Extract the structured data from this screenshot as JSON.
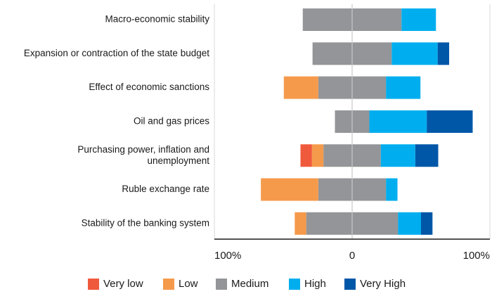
{
  "chart_data": {
    "type": "bar",
    "orientation": "horizontal",
    "stacked": "diverging",
    "categories": [
      "Macro-economic stability",
      "Expansion or contraction of the state budget",
      "Effect of economic sanctions",
      "Oil and gas prices",
      "Purchasing power, inflation and unemployment",
      "Ruble exchange rate",
      "Stability of the banking system"
    ],
    "category_lines": [
      [
        "Macro-economic stability"
      ],
      [
        "Expansion or contraction of the state budget"
      ],
      [
        "Effect of economic sanctions"
      ],
      [
        "Oil and gas prices"
      ],
      [
        "Purchasing power, inflation and",
        "unemployment"
      ],
      [
        "Ruble exchange rate"
      ],
      [
        "Stability of the banking system"
      ]
    ],
    "series": [
      {
        "name": "Very low",
        "color": "#f05a3c",
        "values": [
          0,
          0,
          0,
          0,
          10,
          0,
          0
        ]
      },
      {
        "name": "Low",
        "color": "#f59a4b",
        "values": [
          0,
          0,
          30,
          0,
          10,
          50,
          10
        ]
      },
      {
        "name": "Medium",
        "color": "#939598",
        "values": [
          86,
          69,
          59,
          30,
          50,
          59,
          80
        ]
      },
      {
        "name": "High",
        "color": "#00aeef",
        "values": [
          30,
          40,
          30,
          50,
          30,
          10,
          20
        ]
      },
      {
        "name": "Very High",
        "color": "#0057a8",
        "values": [
          0,
          10,
          0,
          40,
          20,
          0,
          10
        ]
      }
    ],
    "negative_series": [
      "Very low",
      "Low"
    ],
    "neutral_series": "Medium",
    "positive_series": [
      "High",
      "Very High"
    ],
    "xlim": [
      -120,
      120
    ],
    "x_ticks": [
      {
        "value": -120,
        "label": "100%"
      },
      {
        "value": 0,
        "label": "0"
      },
      {
        "value": 120,
        "label": "100%"
      }
    ],
    "title": "",
    "xlabel": "",
    "ylabel": "",
    "legend_position": "bottom",
    "grid": false
  }
}
